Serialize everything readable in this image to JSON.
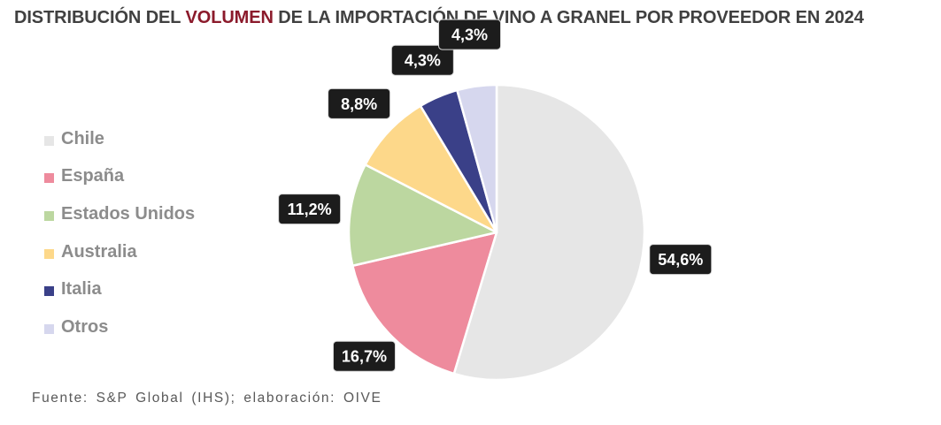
{
  "title": {
    "part1": "DISTRIBUCIÓN DEL ",
    "highlight": "VOLUMEN",
    "part2": " DE LA IMPORTACIÓN DE VINO A GRANEL POR PROVEEDOR EN 2024",
    "highlight_color": "#8b1a2b"
  },
  "source": "Fuente: S&P Global (IHS); elaboración: OIVE",
  "chart_data": {
    "type": "pie",
    "start_angle_deg": 0,
    "direction": "clockwise",
    "legend_position": "left",
    "slices": [
      {
        "label": "Chile",
        "value": 54.6,
        "display": "54,6%",
        "color": "#e6e6e6"
      },
      {
        "label": "España",
        "value": 16.7,
        "display": "16,7%",
        "color": "#ee8b9d"
      },
      {
        "label": "Estados Unidos",
        "value": 11.2,
        "display": "11,2%",
        "color": "#bcd7a0"
      },
      {
        "label": "Australia",
        "value": 8.8,
        "display": "8,8%",
        "color": "#fdd88a"
      },
      {
        "label": "Italia",
        "value": 4.3,
        "display": "4,3%",
        "color": "#3a4088"
      },
      {
        "label": "Otros",
        "value": 4.3,
        "display": "4,3%",
        "color": "#d6d7ee"
      }
    ]
  }
}
